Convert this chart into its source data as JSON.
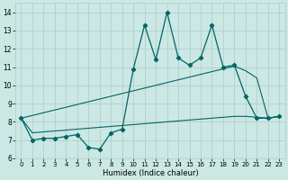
{
  "xlabel": "Humidex (Indice chaleur)",
  "x_values": [
    0,
    1,
    2,
    3,
    4,
    5,
    6,
    7,
    8,
    9,
    10,
    11,
    12,
    13,
    14,
    15,
    16,
    17,
    18,
    19,
    20,
    21,
    22,
    23
  ],
  "y_main": [
    8.2,
    7.0,
    7.1,
    7.1,
    7.2,
    7.3,
    6.6,
    6.5,
    7.4,
    7.6,
    10.9,
    13.3,
    11.4,
    14.0,
    11.5,
    11.1,
    11.5,
    13.3,
    11.0,
    11.1,
    9.4,
    8.2,
    8.2,
    8.3
  ],
  "y_line1": [
    8.2,
    8.35,
    8.5,
    8.65,
    8.8,
    8.95,
    9.1,
    9.25,
    9.4,
    9.55,
    9.7,
    9.85,
    10.0,
    10.15,
    10.3,
    10.45,
    10.6,
    10.75,
    10.9,
    11.05,
    10.8,
    10.4,
    8.2,
    8.3
  ],
  "y_line2": [
    8.2,
    7.4,
    7.45,
    7.5,
    7.55,
    7.6,
    7.65,
    7.7,
    7.75,
    7.8,
    7.85,
    7.9,
    7.95,
    8.0,
    8.05,
    8.1,
    8.15,
    8.2,
    8.25,
    8.3,
    8.3,
    8.25,
    8.2,
    8.3
  ],
  "line_color": "#006666",
  "bg_color": "#cce8e4",
  "grid_color": "#aaccca",
  "ylim": [
    6,
    14.5
  ],
  "yticks": [
    6,
    7,
    8,
    9,
    10,
    11,
    12,
    13,
    14
  ],
  "xlim": [
    -0.5,
    23.5
  ],
  "xticks": [
    0,
    1,
    2,
    3,
    4,
    5,
    6,
    7,
    8,
    9,
    10,
    11,
    12,
    13,
    14,
    15,
    16,
    17,
    18,
    19,
    20,
    21,
    22,
    23
  ]
}
